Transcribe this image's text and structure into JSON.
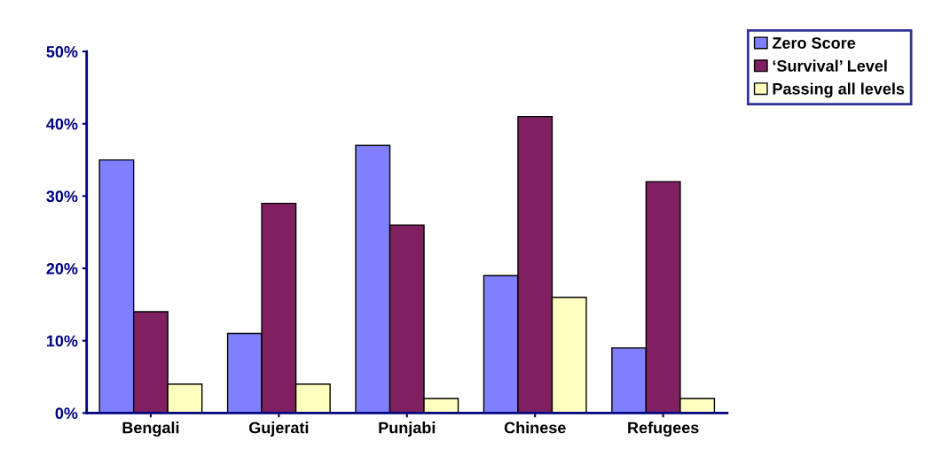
{
  "chart_data": {
    "type": "bar",
    "categories": [
      "Bengali",
      "Gujerati",
      "Punjabi",
      "Chinese",
      "Refugees"
    ],
    "series": [
      {
        "name": "Zero Score",
        "color": "#8080ff",
        "values": [
          35,
          11,
          37,
          19,
          9
        ]
      },
      {
        "name": "‘Survival’ Level",
        "color": "#802060",
        "values": [
          14,
          29,
          26,
          41,
          32
        ]
      },
      {
        "name": "Passing all levels",
        "color": "#ffffc0",
        "values": [
          4,
          4,
          2,
          16,
          2
        ]
      }
    ],
    "ylim": [
      0,
      50
    ],
    "yticks": [
      {
        "value": 0,
        "label": "0%"
      },
      {
        "value": 10,
        "label": "10%"
      },
      {
        "value": 20,
        "label": "20%"
      },
      {
        "value": 30,
        "label": "30%"
      },
      {
        "value": 40,
        "label": "40%"
      },
      {
        "value": 50,
        "label": "50%"
      }
    ],
    "grid": false,
    "legend": "top right"
  }
}
